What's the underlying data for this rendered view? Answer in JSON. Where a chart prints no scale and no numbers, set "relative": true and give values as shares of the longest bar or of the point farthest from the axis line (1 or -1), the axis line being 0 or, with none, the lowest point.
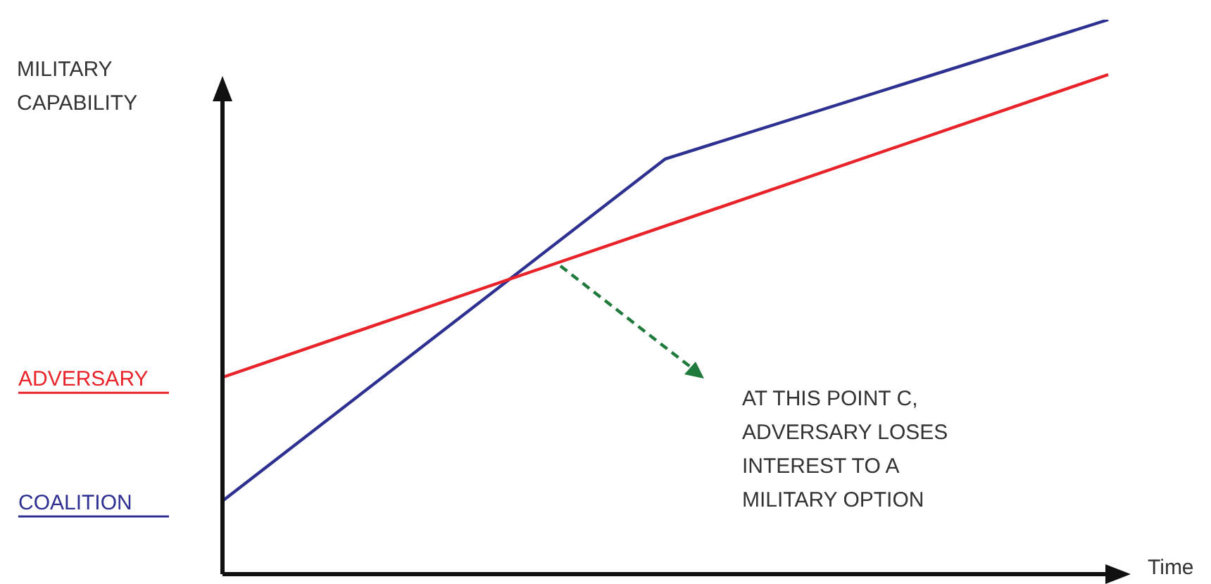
{
  "chart_data": {
    "type": "line",
    "relative": true,
    "ylabel": "MILITARY CAPABILITY",
    "xlabel": "Time",
    "legend": false,
    "marker": "none",
    "line_style": "solid",
    "categories": [
      null,
      null,
      null
    ],
    "annotations": [
      "AT THIS POINT C, ADVERSARY LOSES INTEREST TO A MILITARY OPTION"
    ],
    "series": [
      {
        "name": "ADVERSARY",
        "color": "#e8232a",
        "values": [
          0.355,
          0.628,
          0.901
        ]
      },
      {
        "name": "COALITION",
        "color": "#2e3192",
        "values": [
          0.132,
          0.749,
          1
        ]
      }
    ]
  }
}
